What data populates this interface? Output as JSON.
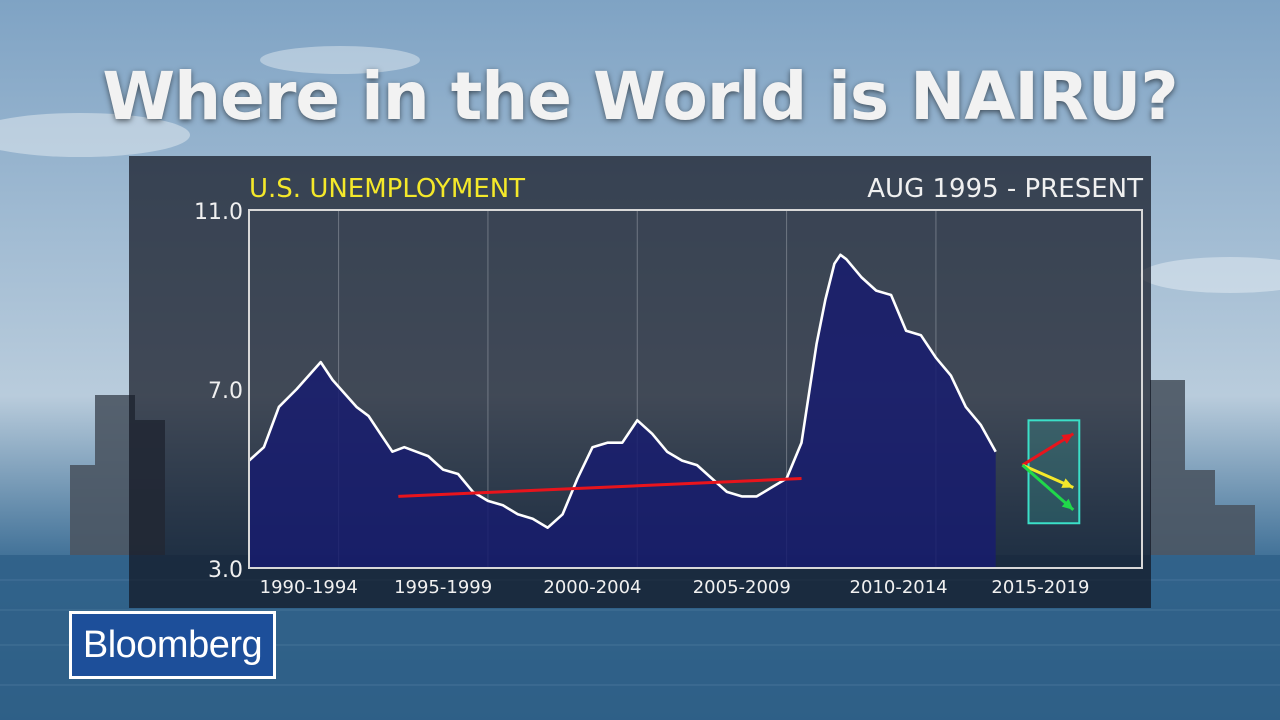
{
  "headline": "Where in the World is NAIRU?",
  "logo_text": "Bloomberg",
  "chart_data": {
    "type": "area",
    "title": "U.S. UNEMPLOYMENT",
    "subtitle": "AUG 1995 - PRESENT",
    "y_ticks": [
      "11.0",
      "7.0",
      "3.0"
    ],
    "ylim": [
      3.0,
      11.0
    ],
    "xlim": [
      1990.0,
      2019.9
    ],
    "x_tick_labels": [
      "1990-1994",
      "1995-1999",
      "2000-2004",
      "2005-2009",
      "2010-2014",
      "2015-2019"
    ],
    "x_tick_positions": [
      1992.0,
      1996.5,
      2001.5,
      2006.5,
      2011.75,
      2016.5
    ],
    "grid_lines_x": [
      1993.0,
      1998.0,
      2003.0,
      2008.0,
      2013.0
    ],
    "series": [
      {
        "x": [
          1990.0,
          1990.5,
          1991.0,
          1991.3,
          1991.6,
          1992.0,
          1992.4,
          1992.8,
          1993.2,
          1993.6,
          1994.0,
          1994.4,
          1994.8,
          1995.2,
          1995.6,
          1996.0,
          1996.5,
          1997.0,
          1997.5,
          1998.0,
          1998.5,
          1999.0,
          1999.5,
          2000.0,
          2000.5,
          2001.0,
          2001.5,
          2002.0,
          2002.5,
          2003.0,
          2003.5,
          2004.0,
          2004.5,
          2005.0,
          2005.5,
          2006.0,
          2006.5,
          2007.0,
          2007.5,
          2008.0,
          2008.5,
          2009.0,
          2009.3,
          2009.6,
          2009.8,
          2010.0,
          2010.5,
          2011.0,
          2011.5,
          2012.0,
          2012.5,
          2013.0,
          2013.5,
          2014.0,
          2014.5,
          2015.0
        ],
        "values": [
          5.4,
          5.7,
          6.6,
          6.8,
          7.0,
          7.3,
          7.6,
          7.2,
          6.9,
          6.6,
          6.4,
          6.0,
          5.6,
          5.7,
          5.6,
          5.5,
          5.2,
          5.1,
          4.7,
          4.5,
          4.4,
          4.2,
          4.1,
          3.9,
          4.2,
          5.0,
          5.7,
          5.8,
          5.8,
          6.3,
          6.0,
          5.6,
          5.4,
          5.3,
          5.0,
          4.7,
          4.6,
          4.6,
          4.8,
          5.0,
          5.8,
          8.0,
          9.0,
          9.8,
          10.0,
          9.9,
          9.5,
          9.2,
          9.1,
          8.3,
          8.2,
          7.7,
          7.3,
          6.6,
          6.2,
          5.6
        ]
      }
    ],
    "annotations": {
      "trend_line": {
        "x": [
          1995.0,
          2008.5
        ],
        "y": [
          4.6,
          5.0
        ],
        "color": "#e8141c"
      },
      "forecast_box": {
        "x": [
          2016.1,
          2017.8
        ],
        "y": [
          4.0,
          6.3
        ],
        "color": "#3be0c8"
      },
      "arrows": [
        {
          "from": [
            2015.9,
            5.3
          ],
          "to": [
            2017.6,
            6.0
          ],
          "color": "#e8141c"
        },
        {
          "from": [
            2015.9,
            5.3
          ],
          "to": [
            2017.6,
            4.8
          ],
          "color": "#f4e82a"
        },
        {
          "from": [
            2015.9,
            5.3
          ],
          "to": [
            2017.6,
            4.3
          ],
          "color": "#20d84a"
        }
      ]
    },
    "colors": {
      "fill": "#171c6e",
      "line": "#ffffff",
      "axis": "#d8d8d8",
      "grid": "#9aa0aa"
    }
  }
}
